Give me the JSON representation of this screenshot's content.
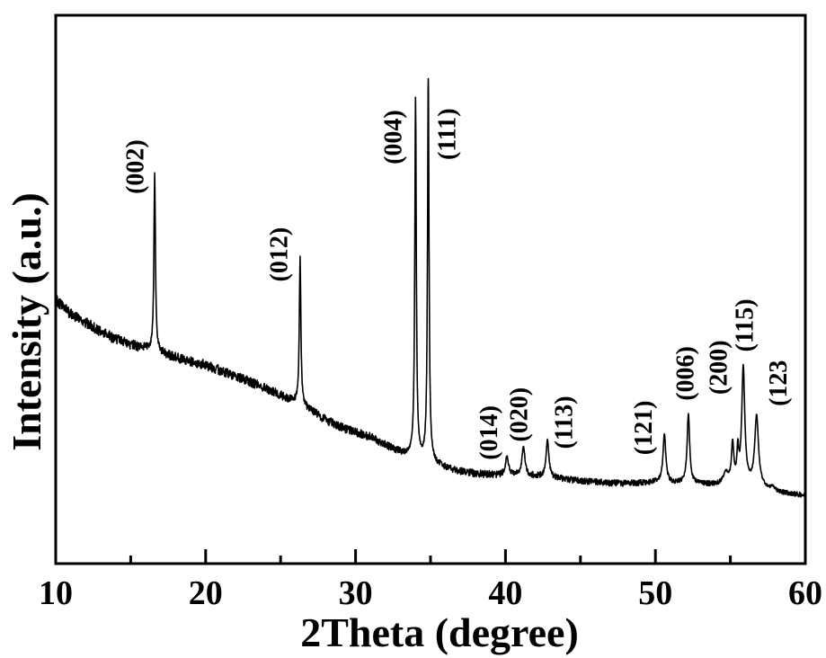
{
  "figure": {
    "kind": "XRD powder diffraction pattern",
    "background_color": "#ffffff",
    "foreground_color": "#000000"
  },
  "chart_data": {
    "type": "line",
    "title": "",
    "xlabel": "2Theta (degree)",
    "ylabel": "Intensity (a.u.)",
    "xlim": [
      10,
      60
    ],
    "x_major_ticks": [
      10,
      20,
      30,
      40,
      50,
      60
    ],
    "x_minor_ticks": [
      15,
      25,
      35,
      45,
      55
    ],
    "y_ticks": "none (arbitrary units)",
    "grid": false,
    "legend": false,
    "line_color": "#000000",
    "frame_color": "#000000",
    "background_color": "#ffffff",
    "baseline": {
      "x": [
        10,
        11,
        12,
        13,
        14,
        15,
        16,
        17,
        18,
        19,
        20,
        21,
        22,
        23,
        24,
        25,
        26,
        27,
        28,
        29,
        30,
        31,
        32,
        33,
        34,
        35,
        36,
        37,
        38,
        39,
        40,
        41,
        42,
        43,
        44,
        45,
        46,
        47,
        48,
        49,
        50,
        51,
        52,
        53,
        54,
        55,
        56,
        57,
        58,
        59,
        60
      ],
      "intensity_au": [
        48.1,
        45.5,
        44.0,
        42.2,
        41.0,
        39.9,
        39.2,
        38.4,
        37.6,
        36.9,
        36.2,
        35.2,
        34.2,
        33.1,
        31.9,
        30.7,
        29.5,
        27.9,
        26.2,
        24.9,
        23.9,
        23.1,
        21.6,
        20.3,
        19.3,
        18.5,
        17.5,
        16.8,
        16.4,
        16.2,
        16.1,
        16.0,
        15.9,
        15.7,
        15.4,
        15.1,
        14.9,
        14.7,
        14.6,
        14.7,
        14.8,
        14.7,
        14.7,
        14.5,
        14.3,
        14.5,
        14.3,
        13.8,
        12.9,
        12.7,
        12.4
      ]
    },
    "peaks": [
      {
        "label": "(002)",
        "two_theta": 16.6,
        "height_au": 32.5,
        "gamma_deg": 0.06,
        "apex_au": 71.7,
        "label_center_x_deg": 15.3,
        "label_bottom_au": 67.4
      },
      {
        "label": "(012)",
        "two_theta": 26.3,
        "height_au": 27.0,
        "gamma_deg": 0.06,
        "apex_au": 56.3,
        "label_center_x_deg": 24.9,
        "label_bottom_au": 51.4
      },
      {
        "label": "(004)",
        "two_theta": 34.0,
        "height_au": 65.4,
        "gamma_deg": 0.06,
        "apex_au": 84.0,
        "label_center_x_deg": 32.5,
        "label_bottom_au": 72.8
      },
      {
        "label": "(111)",
        "two_theta": 34.85,
        "height_au": 69.5,
        "gamma_deg": 0.06,
        "apex_au": 88.0,
        "label_center_x_deg": 36.1,
        "label_bottom_au": 73.6
      },
      {
        "label": "(014)",
        "two_theta": 40.1,
        "height_au": 3.4,
        "gamma_deg": 0.12,
        "apex_au": 19.6,
        "label_center_x_deg": 38.9,
        "label_bottom_au": 18.9
      },
      {
        "label": "(020)",
        "two_theta": 41.2,
        "height_au": 5.3,
        "gamma_deg": 0.12,
        "apex_au": 21.3,
        "label_center_x_deg": 40.9,
        "label_bottom_au": 22.2
      },
      {
        "label": "(113)",
        "two_theta": 42.8,
        "height_au": 6.8,
        "gamma_deg": 0.11,
        "apex_au": 22.6,
        "label_center_x_deg": 43.9,
        "label_bottom_au": 20.9
      },
      {
        "label": "(121)",
        "two_theta": 50.6,
        "height_au": 8.9,
        "gamma_deg": 0.11,
        "apex_au": 23.7,
        "label_center_x_deg": 49.2,
        "label_bottom_au": 19.8
      },
      {
        "label": "(006)",
        "two_theta": 52.2,
        "height_au": 12.6,
        "gamma_deg": 0.1,
        "apex_au": 27.3,
        "label_center_x_deg": 52.0,
        "label_bottom_au": 29.7
      },
      {
        "label": "(200)",
        "two_theta": 55.15,
        "height_au": 7.0,
        "gamma_deg": 0.09,
        "apex_au": 22.5,
        "label_center_x_deg": 54.2,
        "label_bottom_au": 30.8
      },
      {
        "label": "(115)",
        "two_theta": 55.86,
        "height_au": 21.2,
        "gamma_deg": 0.12,
        "apex_au": 35.6,
        "label_center_x_deg": 55.95,
        "label_bottom_au": 38.6
      },
      {
        "label": "(123",
        "two_theta": 56.75,
        "height_au": 12.8,
        "gamma_deg": 0.15,
        "apex_au": 28.5,
        "label_center_x_deg": 58.2,
        "label_bottom_au": 28.7
      }
    ],
    "minor_features": [
      {
        "two_theta": 54.7,
        "height_au": 2.0,
        "gamma_deg": 0.2
      },
      {
        "two_theta": 55.5,
        "height_au": 5.5,
        "gamma_deg": 0.07
      },
      {
        "two_theta": 57.85,
        "height_au": 0.8,
        "gamma_deg": 0.25
      }
    ],
    "noise": {
      "amplitude_start_au": 1.0,
      "amplitude_end_au": 0.45,
      "seed": 20240613
    }
  }
}
